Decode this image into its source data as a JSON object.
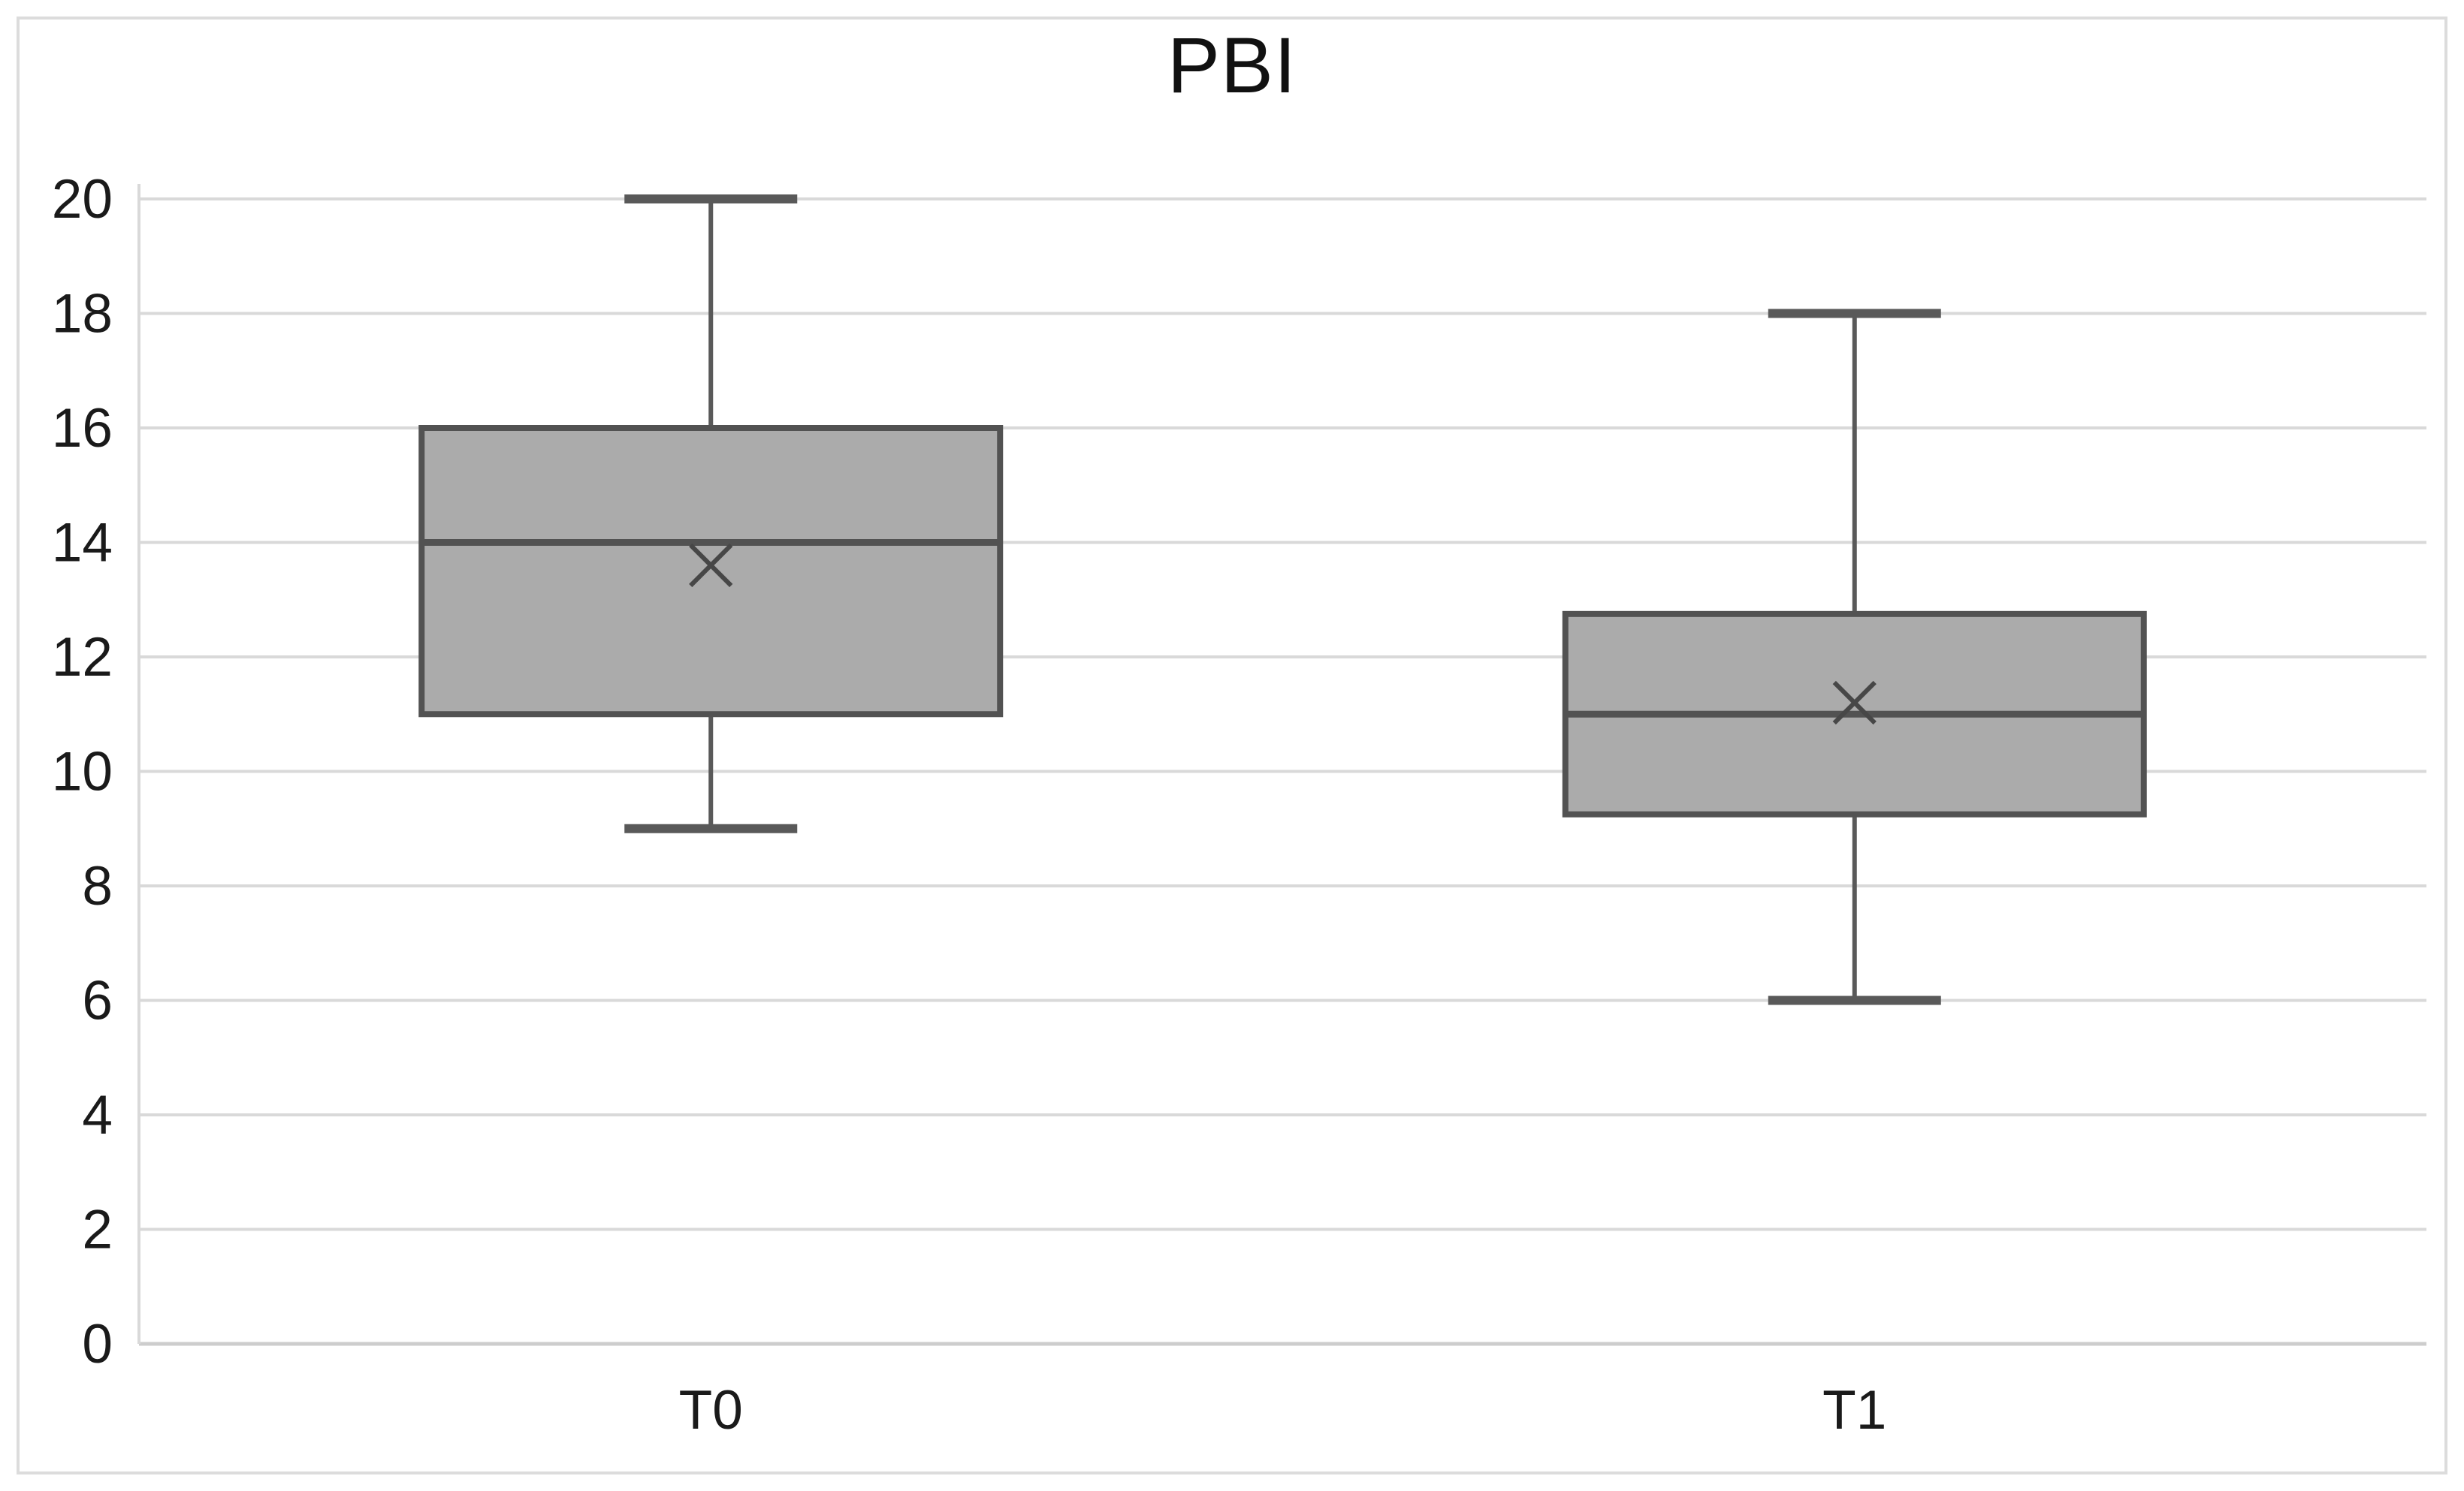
{
  "figure": {
    "title": "PBI"
  },
  "chart_data": {
    "type": "boxplot",
    "title": "PBI",
    "categories": [
      "T0",
      "T1"
    ],
    "y_axis": {
      "min": 0,
      "max": 20,
      "step": 2,
      "tick_labels": [
        "0",
        "2",
        "4",
        "6",
        "8",
        "10",
        "12",
        "14",
        "16",
        "18",
        "20"
      ]
    },
    "series": [
      {
        "name": "T0",
        "whisker_min": 9,
        "q1": 11,
        "median": 14,
        "q3": 16,
        "whisker_max": 20,
        "mean": 13.6
      },
      {
        "name": "T1",
        "whisker_min": 6,
        "q1": 9.25,
        "median": 11,
        "q3": 12.75,
        "whisker_max": 18,
        "mean": 11.2
      }
    ],
    "layout_hints": {
      "grid": "horizontal",
      "legend": "none",
      "mean_marker": "x-cross"
    },
    "colors": {
      "background": "#FFFFFF",
      "frame_border": "#DCDCDC",
      "gridline": "#D9D9D9",
      "axis_line": "#CDCDCD",
      "box_fill": "#ABABAB",
      "box_border": "#525252",
      "median_line": "#525252",
      "whisker": "#595959",
      "mean_marker": "#474747",
      "text": "#1A1A1A"
    }
  }
}
